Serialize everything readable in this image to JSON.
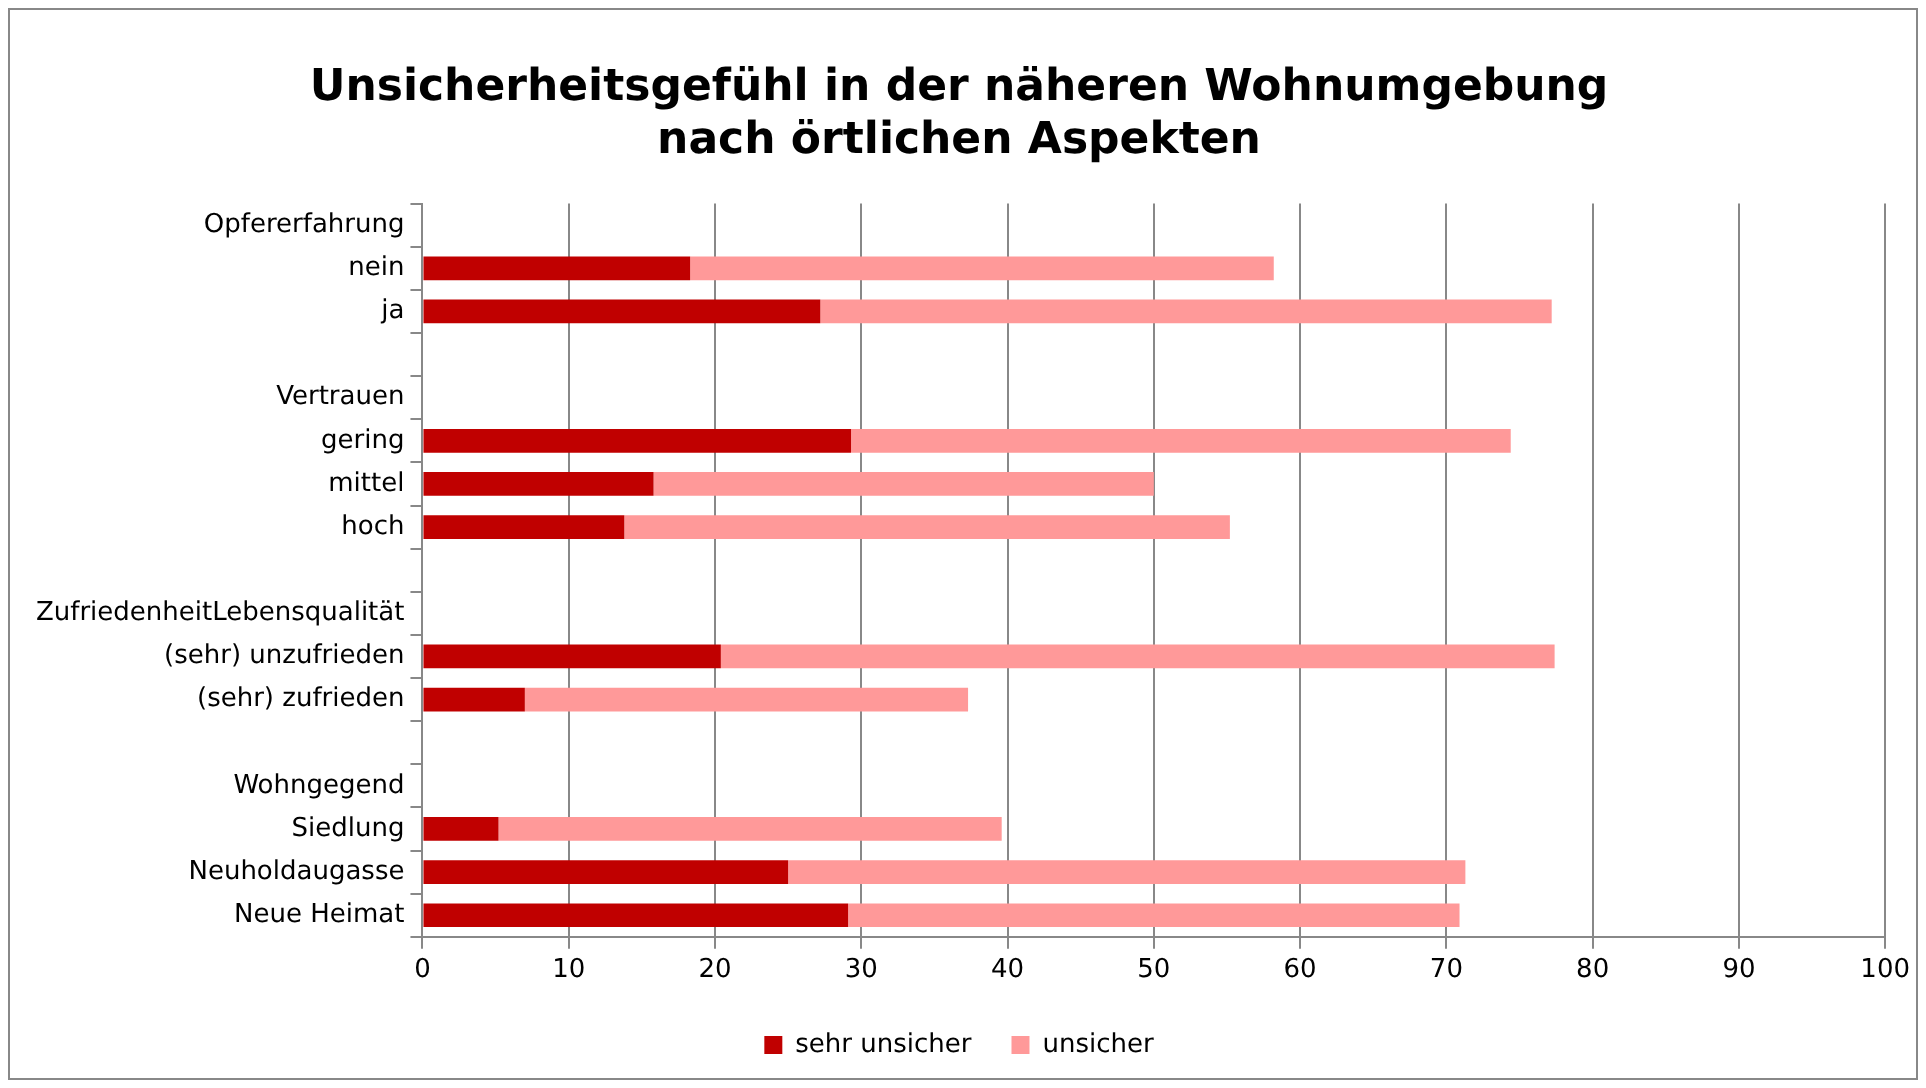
{
  "chart_data": {
    "type": "bar",
    "orientation": "horizontal",
    "stacked": true,
    "title": "Unsicherheitsgefühl in der näheren Wohnumgebung\nnach örtlichen Aspekten",
    "categories": [
      "Opfererfahrung",
      "nein",
      "ja",
      null,
      "Vertrauen",
      "gering",
      "mittel",
      "hoch",
      null,
      "ZufriedenheitLebensqualität",
      "(sehr) unzufrieden",
      "(sehr) zufrieden",
      null,
      "Wohngegend",
      "Siedlung",
      "Neuholdaugasse",
      "Neue Heimat"
    ],
    "series": [
      {
        "name": "sehr unsicher",
        "color": "#c00000",
        "values": [
          null,
          18.3,
          27.2,
          null,
          null,
          29.3,
          15.8,
          13.8,
          null,
          null,
          20.4,
          7.0,
          null,
          null,
          5.2,
          25.0,
          29.1
        ]
      },
      {
        "name": "unsicher",
        "color": "#ff9999",
        "values": [
          null,
          39.9,
          50.0,
          null,
          null,
          45.1,
          34.2,
          41.4,
          null,
          null,
          57.0,
          30.3,
          null,
          null,
          34.4,
          46.3,
          41.8
        ]
      }
    ],
    "xlim": [
      0,
      100
    ],
    "xticks": [
      0,
      10,
      20,
      30,
      40,
      50,
      60,
      70,
      80,
      90,
      100
    ],
    "grid": "x",
    "legend": "bottom"
  }
}
